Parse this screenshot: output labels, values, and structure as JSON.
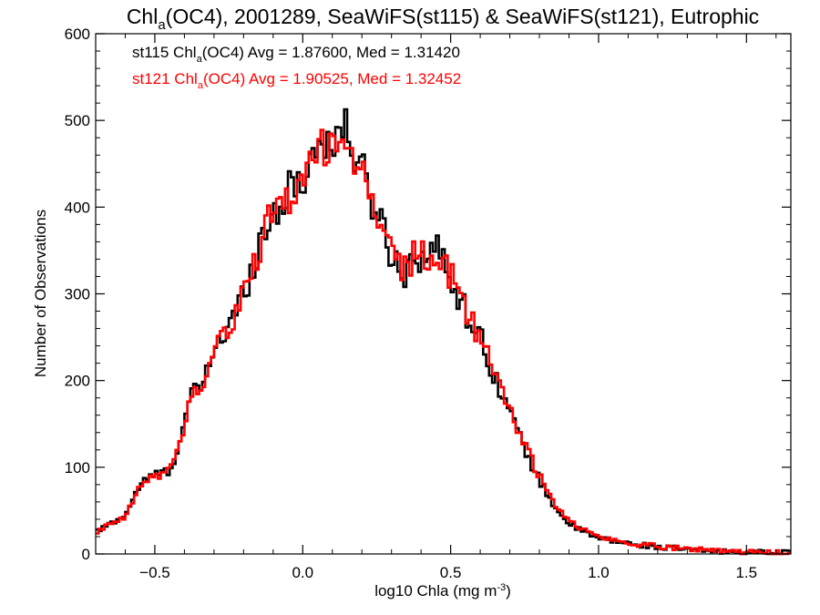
{
  "chart_data": {
    "type": "histogram-step",
    "title": {
      "prefix": "Chl",
      "sub": "a",
      "rest": "(OC4), 2001289, SeaWiFS(st115) & SeaWiFS(st121), Eutrophic"
    },
    "xlabel": {
      "text": "log10 Chla (mg m",
      "sup": "-3",
      "close": ")"
    },
    "ylabel": "Number of Observations",
    "xlim": [
      -0.7,
      1.65
    ],
    "ylim": [
      0,
      600
    ],
    "xticks": [
      {
        "value": -0.5,
        "label": "−0.5"
      },
      {
        "value": 0.0,
        "label": "0.0"
      },
      {
        "value": 0.5,
        "label": "0.5"
      },
      {
        "value": 1.0,
        "label": "1.0"
      },
      {
        "value": 1.5,
        "label": "1.5"
      }
    ],
    "yticks": [
      {
        "value": 0,
        "label": "0"
      },
      {
        "value": 100,
        "label": "100"
      },
      {
        "value": 200,
        "label": "200"
      },
      {
        "value": 300,
        "label": "300"
      },
      {
        "value": 400,
        "label": "400"
      },
      {
        "value": 500,
        "label": "500"
      },
      {
        "value": 600,
        "label": "600"
      }
    ],
    "annotations": [
      {
        "prefix": "st115 Chl",
        "sub": "a",
        "rest": "(OC4) Avg = 1.87600, Med = 1.31420",
        "color": "#000000"
      },
      {
        "prefix": "st121 Chl",
        "sub": "a",
        "rest": "(OC4) Avg = 1.90525, Med = 1.32452",
        "color": "#ff0000"
      }
    ],
    "series": [
      {
        "color": "#000000",
        "profile": [
          [
            -0.7,
            25
          ],
          [
            -0.6,
            45
          ],
          [
            -0.55,
            80
          ],
          [
            -0.5,
            92
          ],
          [
            -0.45,
            95
          ],
          [
            -0.42,
            125
          ],
          [
            -0.38,
            180
          ],
          [
            -0.33,
            200
          ],
          [
            -0.3,
            240
          ],
          [
            -0.25,
            260
          ],
          [
            -0.2,
            300
          ],
          [
            -0.15,
            355
          ],
          [
            -0.1,
            395
          ],
          [
            -0.05,
            415
          ],
          [
            0.0,
            435
          ],
          [
            0.05,
            470
          ],
          [
            0.1,
            480
          ],
          [
            0.14,
            490
          ],
          [
            0.18,
            460
          ],
          [
            0.22,
            420
          ],
          [
            0.26,
            390
          ],
          [
            0.3,
            345
          ],
          [
            0.34,
            325
          ],
          [
            0.38,
            345
          ],
          [
            0.42,
            345
          ],
          [
            0.46,
            350
          ],
          [
            0.5,
            320
          ],
          [
            0.55,
            280
          ],
          [
            0.6,
            250
          ],
          [
            0.65,
            205
          ],
          [
            0.7,
            165
          ],
          [
            0.75,
            120
          ],
          [
            0.8,
            85
          ],
          [
            0.85,
            55
          ],
          [
            0.9,
            35
          ],
          [
            0.95,
            25
          ],
          [
            1.0,
            18
          ],
          [
            1.05,
            15
          ],
          [
            1.1,
            12
          ],
          [
            1.2,
            8
          ],
          [
            1.3,
            5
          ],
          [
            1.4,
            3
          ],
          [
            1.5,
            2
          ],
          [
            1.65,
            1
          ]
        ]
      },
      {
        "color": "#ff0000",
        "profile": [
          [
            -0.7,
            25
          ],
          [
            -0.6,
            42
          ],
          [
            -0.55,
            78
          ],
          [
            -0.5,
            90
          ],
          [
            -0.45,
            95
          ],
          [
            -0.42,
            125
          ],
          [
            -0.38,
            178
          ],
          [
            -0.33,
            200
          ],
          [
            -0.3,
            238
          ],
          [
            -0.25,
            258
          ],
          [
            -0.2,
            298
          ],
          [
            -0.15,
            352
          ],
          [
            -0.1,
            392
          ],
          [
            -0.05,
            412
          ],
          [
            0.0,
            432
          ],
          [
            0.05,
            466
          ],
          [
            0.1,
            476
          ],
          [
            0.14,
            482
          ],
          [
            0.18,
            455
          ],
          [
            0.22,
            420
          ],
          [
            0.26,
            390
          ],
          [
            0.3,
            345
          ],
          [
            0.34,
            328
          ],
          [
            0.38,
            345
          ],
          [
            0.42,
            342
          ],
          [
            0.46,
            338
          ],
          [
            0.5,
            320
          ],
          [
            0.55,
            282
          ],
          [
            0.6,
            252
          ],
          [
            0.65,
            208
          ],
          [
            0.7,
            170
          ],
          [
            0.75,
            125
          ],
          [
            0.8,
            90
          ],
          [
            0.85,
            58
          ],
          [
            0.9,
            38
          ],
          [
            0.95,
            28
          ],
          [
            1.0,
            20
          ],
          [
            1.05,
            16
          ],
          [
            1.1,
            12
          ],
          [
            1.2,
            9
          ],
          [
            1.3,
            6
          ],
          [
            1.4,
            4
          ],
          [
            1.5,
            2
          ],
          [
            1.65,
            1
          ]
        ]
      }
    ]
  }
}
